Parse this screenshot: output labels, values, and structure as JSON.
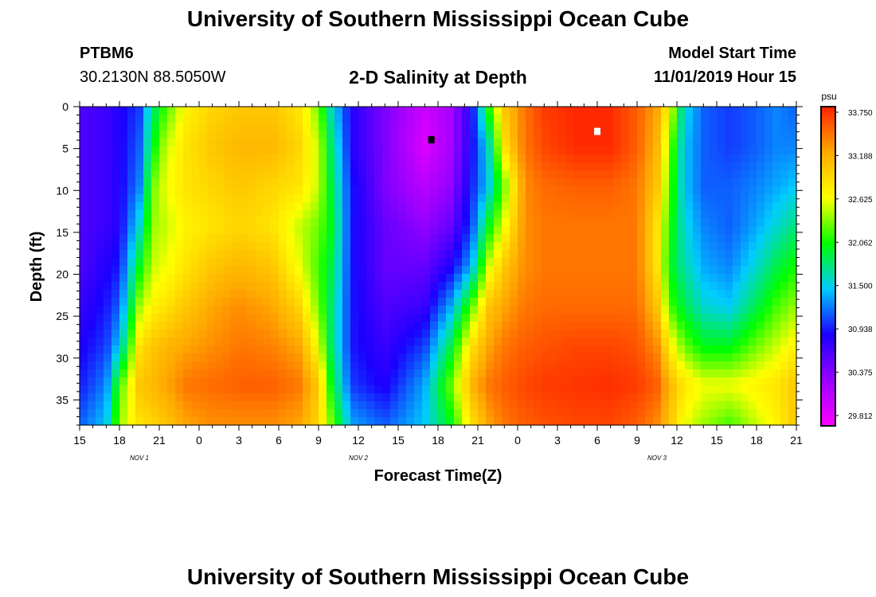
{
  "header": {
    "title": "University of Southern Mississippi Ocean Cube",
    "station": "PTBM6",
    "coords": "30.2130N 88.5050W",
    "subtitle": "2-D Salinity at Depth",
    "model_start_label": "Model Start Time",
    "model_start_value": "11/01/2019 Hour 15"
  },
  "footer": {
    "title": "University of Southern Mississippi Ocean Cube"
  },
  "chart_data": {
    "type": "heatmap",
    "title": "2-D Salinity at Depth",
    "xlabel": "Forecast Time(Z)",
    "ylabel": "Depth (ft)",
    "x_hours_range": [
      0,
      54
    ],
    "x_ticks": [
      {
        "h": 0,
        "label": "15"
      },
      {
        "h": 3,
        "label": "18"
      },
      {
        "h": 6,
        "label": "21"
      },
      {
        "h": 9,
        "label": "0"
      },
      {
        "h": 12,
        "label": "3"
      },
      {
        "h": 15,
        "label": "6"
      },
      {
        "h": 18,
        "label": "9"
      },
      {
        "h": 21,
        "label": "12"
      },
      {
        "h": 24,
        "label": "15"
      },
      {
        "h": 27,
        "label": "18"
      },
      {
        "h": 30,
        "label": "21"
      },
      {
        "h": 33,
        "label": "0"
      },
      {
        "h": 36,
        "label": "3"
      },
      {
        "h": 39,
        "label": "6"
      },
      {
        "h": 42,
        "label": "9"
      },
      {
        "h": 45,
        "label": "12"
      },
      {
        "h": 48,
        "label": "15"
      },
      {
        "h": 51,
        "label": "18"
      },
      {
        "h": 54,
        "label": "21"
      }
    ],
    "day_labels": [
      {
        "h": 4.5,
        "label": "NOV 1"
      },
      {
        "h": 21,
        "label": "NOV 2"
      },
      {
        "h": 43.5,
        "label": "NOV 3"
      }
    ],
    "y_range": [
      0,
      38
    ],
    "y_ticks": [
      0,
      5,
      10,
      15,
      20,
      25,
      30,
      35
    ],
    "colorbar": {
      "unit": "psu",
      "min": 29.812,
      "max": 33.75,
      "labels": [
        "33.750",
        "33.188",
        "32.625",
        "32.062",
        "31.500",
        "30.938",
        "30.375",
        "29.812"
      ],
      "colors": [
        "#ff00ff",
        "#9900ff",
        "#1a00ff",
        "#00ccff",
        "#00ff00",
        "#ffff00",
        "#ffaa00",
        "#ff2200"
      ]
    },
    "markers": [
      {
        "h": 26.5,
        "depth": 4,
        "label": "min",
        "color": "#000000"
      },
      {
        "h": 39,
        "depth": 3,
        "label": "max",
        "color": "#ffffff"
      }
    ],
    "columns": [
      {
        "h": 0,
        "profile": [
          30.7,
          30.7,
          30.7,
          30.7,
          30.7,
          30.8,
          30.9,
          31.0,
          31.2
        ]
      },
      {
        "h": 2,
        "profile": [
          30.8,
          30.8,
          30.8,
          30.8,
          30.9,
          31.0,
          31.1,
          31.3,
          31.5
        ]
      },
      {
        "h": 3,
        "profile": [
          30.9,
          30.9,
          30.9,
          30.9,
          31.0,
          31.2,
          31.5,
          32.2,
          32.4
        ]
      },
      {
        "h": 4.5,
        "profile": [
          31.1,
          31.2,
          31.3,
          31.6,
          32.0,
          32.4,
          32.8,
          33.0,
          32.8
        ]
      },
      {
        "h": 5.5,
        "profile": [
          31.8,
          32.0,
          32.3,
          32.4,
          32.5,
          32.7,
          33.0,
          33.1,
          32.9
        ]
      },
      {
        "h": 6.5,
        "profile": [
          32.2,
          32.5,
          32.6,
          32.5,
          32.6,
          32.8,
          33.1,
          33.2,
          33.0
        ]
      },
      {
        "h": 8,
        "profile": [
          32.7,
          32.8,
          32.8,
          32.7,
          32.8,
          33.0,
          33.2,
          33.4,
          33.2
        ]
      },
      {
        "h": 10,
        "profile": [
          32.9,
          33.0,
          32.9,
          32.8,
          33.0,
          33.2,
          33.3,
          33.45,
          33.3
        ]
      },
      {
        "h": 12,
        "profile": [
          33.0,
          33.1,
          33.0,
          32.9,
          33.1,
          33.3,
          33.4,
          33.5,
          33.3
        ]
      },
      {
        "h": 14.5,
        "profile": [
          33.0,
          33.1,
          32.9,
          32.8,
          33.0,
          33.2,
          33.35,
          33.5,
          33.3
        ]
      },
      {
        "h": 16.5,
        "profile": [
          32.8,
          32.9,
          32.8,
          32.5,
          32.6,
          32.9,
          33.2,
          33.4,
          33.2
        ]
      },
      {
        "h": 18,
        "profile": [
          32.3,
          32.5,
          32.5,
          32.3,
          32.2,
          32.3,
          32.6,
          33.0,
          32.9
        ]
      },
      {
        "h": 19,
        "profile": [
          31.6,
          31.8,
          31.9,
          32.0,
          31.9,
          31.8,
          31.8,
          32.0,
          32.3
        ]
      },
      {
        "h": 20.5,
        "profile": [
          30.9,
          30.9,
          31.0,
          31.0,
          31.0,
          31.0,
          31.0,
          31.1,
          31.4
        ]
      },
      {
        "h": 23,
        "profile": [
          30.5,
          30.5,
          30.5,
          30.6,
          30.6,
          30.7,
          30.8,
          30.9,
          31.2
        ]
      },
      {
        "h": 26,
        "profile": [
          30.1,
          30.0,
          30.2,
          30.4,
          30.6,
          30.8,
          31.1,
          31.4,
          31.5
        ]
      },
      {
        "h": 28,
        "profile": [
          30.3,
          30.3,
          30.4,
          30.6,
          30.9,
          31.4,
          31.9,
          32.3,
          32.0
        ]
      },
      {
        "h": 29.5,
        "profile": [
          30.9,
          30.9,
          31.0,
          31.1,
          31.4,
          32.2,
          32.8,
          33.1,
          32.8
        ]
      },
      {
        "h": 30.8,
        "profile": [
          32.1,
          31.6,
          31.5,
          32.0,
          32.5,
          33.0,
          33.2,
          33.4,
          33.2
        ]
      },
      {
        "h": 32,
        "profile": [
          33.0,
          32.8,
          32.3,
          32.6,
          33.0,
          33.2,
          33.4,
          33.5,
          33.4
        ]
      },
      {
        "h": 33.5,
        "profile": [
          33.4,
          33.4,
          33.3,
          33.3,
          33.3,
          33.4,
          33.5,
          33.6,
          33.5
        ]
      },
      {
        "h": 35,
        "profile": [
          33.65,
          33.6,
          33.45,
          33.4,
          33.4,
          33.45,
          33.55,
          33.65,
          33.55
        ]
      },
      {
        "h": 37.5,
        "profile": [
          33.73,
          33.72,
          33.5,
          33.4,
          33.4,
          33.45,
          33.6,
          33.68,
          33.6
        ]
      },
      {
        "h": 40,
        "profile": [
          33.72,
          33.72,
          33.5,
          33.4,
          33.4,
          33.45,
          33.6,
          33.7,
          33.6
        ]
      },
      {
        "h": 42,
        "profile": [
          33.5,
          33.5,
          33.4,
          33.4,
          33.4,
          33.45,
          33.55,
          33.65,
          33.5
        ]
      },
      {
        "h": 43.5,
        "profile": [
          33.2,
          33.1,
          33.0,
          32.8,
          32.8,
          33.0,
          33.3,
          33.5,
          33.3
        ]
      },
      {
        "h": 44.5,
        "profile": [
          32.6,
          32.3,
          32.2,
          32.1,
          32.0,
          32.2,
          32.7,
          33.1,
          33.0
        ]
      },
      {
        "h": 45.5,
        "profile": [
          31.6,
          31.5,
          31.5,
          31.6,
          31.7,
          31.9,
          32.3,
          32.8,
          32.6
        ]
      },
      {
        "h": 47,
        "profile": [
          31.2,
          31.2,
          31.2,
          31.3,
          31.4,
          31.6,
          32.0,
          32.6,
          32.4
        ]
      },
      {
        "h": 49,
        "profile": [
          31.1,
          31.1,
          31.2,
          31.2,
          31.3,
          31.5,
          32.0,
          32.6,
          32.2
        ]
      },
      {
        "h": 51,
        "profile": [
          31.2,
          31.2,
          31.3,
          31.4,
          31.6,
          31.9,
          32.3,
          32.7,
          32.5
        ]
      },
      {
        "h": 52.5,
        "profile": [
          31.3,
          31.3,
          31.4,
          31.6,
          31.9,
          32.2,
          32.5,
          32.8,
          32.7
        ]
      },
      {
        "h": 54,
        "profile": [
          31.2,
          31.3,
          31.5,
          31.8,
          32.1,
          32.4,
          32.7,
          33.0,
          33.0
        ]
      }
    ]
  }
}
